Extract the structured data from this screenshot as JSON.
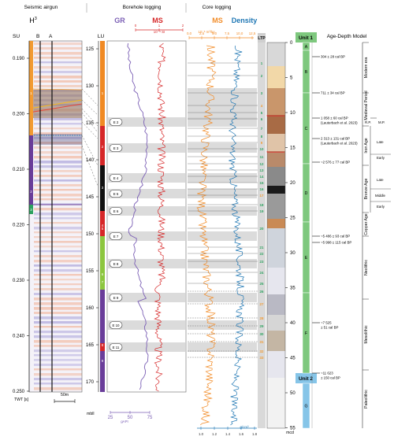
{
  "headers": {
    "seismic": "Seismic airgun",
    "borehole": "Borehole logging",
    "core": "Core logging",
    "h3": "H",
    "h3_sup": "3",
    "su": "SU",
    "b": "B",
    "a": "A",
    "lu": "LU",
    "gr": "GR",
    "ms_bh": "MS",
    "ms_bh_unit": "10⁻⁴ SI",
    "ms_core": "MS",
    "ms_core_unit": "10⁻⁸ m³/kg",
    "density": "Density",
    "ltp": "LTP",
    "unit1": "Unit 1",
    "unit2": "Unit 2",
    "age_depth": "Age-Depth Model"
  },
  "twt_axis": {
    "label": "TWT [s]",
    "ticks": [
      "0.190",
      "0.200",
      "0.210",
      "0.220",
      "0.230",
      "0.240",
      "0.250"
    ]
  },
  "scale_bar": "50m",
  "mbll_axis": {
    "label": "mbll",
    "ticks": [
      "125",
      "130",
      "135",
      "140",
      "145",
      "150",
      "155",
      "160",
      "165",
      "170"
    ]
  },
  "gr_axis": {
    "ticks": [
      "25",
      "50",
      "75"
    ],
    "unit": "gAPI"
  },
  "ms_bh_axis": {
    "ticks": [
      "0",
      "1",
      "2"
    ]
  },
  "ms_core_axis": {
    "ticks": [
      "0,0",
      "2,5",
      "5,0",
      "7,5",
      "10,0",
      "12,5"
    ]
  },
  "density_axis": {
    "ticks": [
      "1.0",
      "1.2",
      "1.4",
      "1.6",
      "1.8"
    ],
    "unit": "g/cm³"
  },
  "mcd_axis": {
    "label": "mcd",
    "ticks": [
      "0",
      "5",
      "10",
      "15",
      "20",
      "25",
      "30",
      "35",
      "40",
      "45",
      "50",
      "55"
    ]
  },
  "su_units": [
    "1",
    "2",
    "3"
  ],
  "lu_units": [
    "1",
    "2",
    "3",
    "4",
    "5",
    "6",
    "7",
    "8",
    "9"
  ],
  "events": [
    "E 2",
    "E 3",
    "E 4",
    "E 5",
    "E 6",
    "E 7",
    "E 8",
    "E 9",
    "E 10",
    "E 11"
  ],
  "ltp_numbers": [
    "1",
    "2",
    "3",
    "4",
    "5",
    "6",
    "7",
    "8",
    "9",
    "10",
    "11",
    "12",
    "13",
    "14",
    "15",
    "16",
    "17",
    "18",
    "19",
    "20",
    "21",
    "22",
    "23",
    "24",
    "25",
    "26",
    "27",
    "28",
    "29",
    "30",
    "31",
    "32",
    "33"
  ],
  "subunits": [
    "A",
    "B",
    "C",
    "D",
    "E",
    "F",
    "G"
  ],
  "ages": [
    "304 ± 28 cal BP",
    "711 ± 34 cal BP",
    "1 058 ± 60 cal BP",
    "(Lauterbach et al. 2023)",
    "2 313 ± 131 cal BP",
    "(Lauterbach et al. 2023)",
    "~2 576 ± 77 cal BP",
    "~5 486 ± 93 cal BP",
    "~5 998 ± 115 cal BP",
    "~7 525",
    "± 51 cal BP",
    "~11 623",
    "± 150 cal BP"
  ],
  "periods": {
    "modern": "Modern era",
    "medieval": "Medieval Period",
    "rp": "R.P.",
    "mp": "M.P.",
    "iron": "Iron Age",
    "iron_late": "Late",
    "iron_early": "Early",
    "bronze": "Bronze Age",
    "bronze_late": "Late",
    "bronze_middle": "Middle",
    "bronze_early": "Early",
    "copper": "Copper Age",
    "neolithic": "Neolithic",
    "mesolithic": "Mesolithic",
    "paleolithic": "Paleolithic"
  },
  "colors": {
    "gr": "#7b5fb5",
    "ms_bh": "#d62728",
    "ms_core": "#f28c28",
    "density": "#1f77b4",
    "unit1": "#7ec87e",
    "unit2": "#86c5e8",
    "su1": "#f29b32",
    "su2": "#6a3d9a",
    "su3": "#2ca25f",
    "lu_orange": "#f08a24",
    "lu_red": "#d62728",
    "lu_black": "#111111",
    "lu_green": "#8cc63f",
    "lu_purple": "#6a3d9a",
    "shade": "#cfcfcf"
  }
}
